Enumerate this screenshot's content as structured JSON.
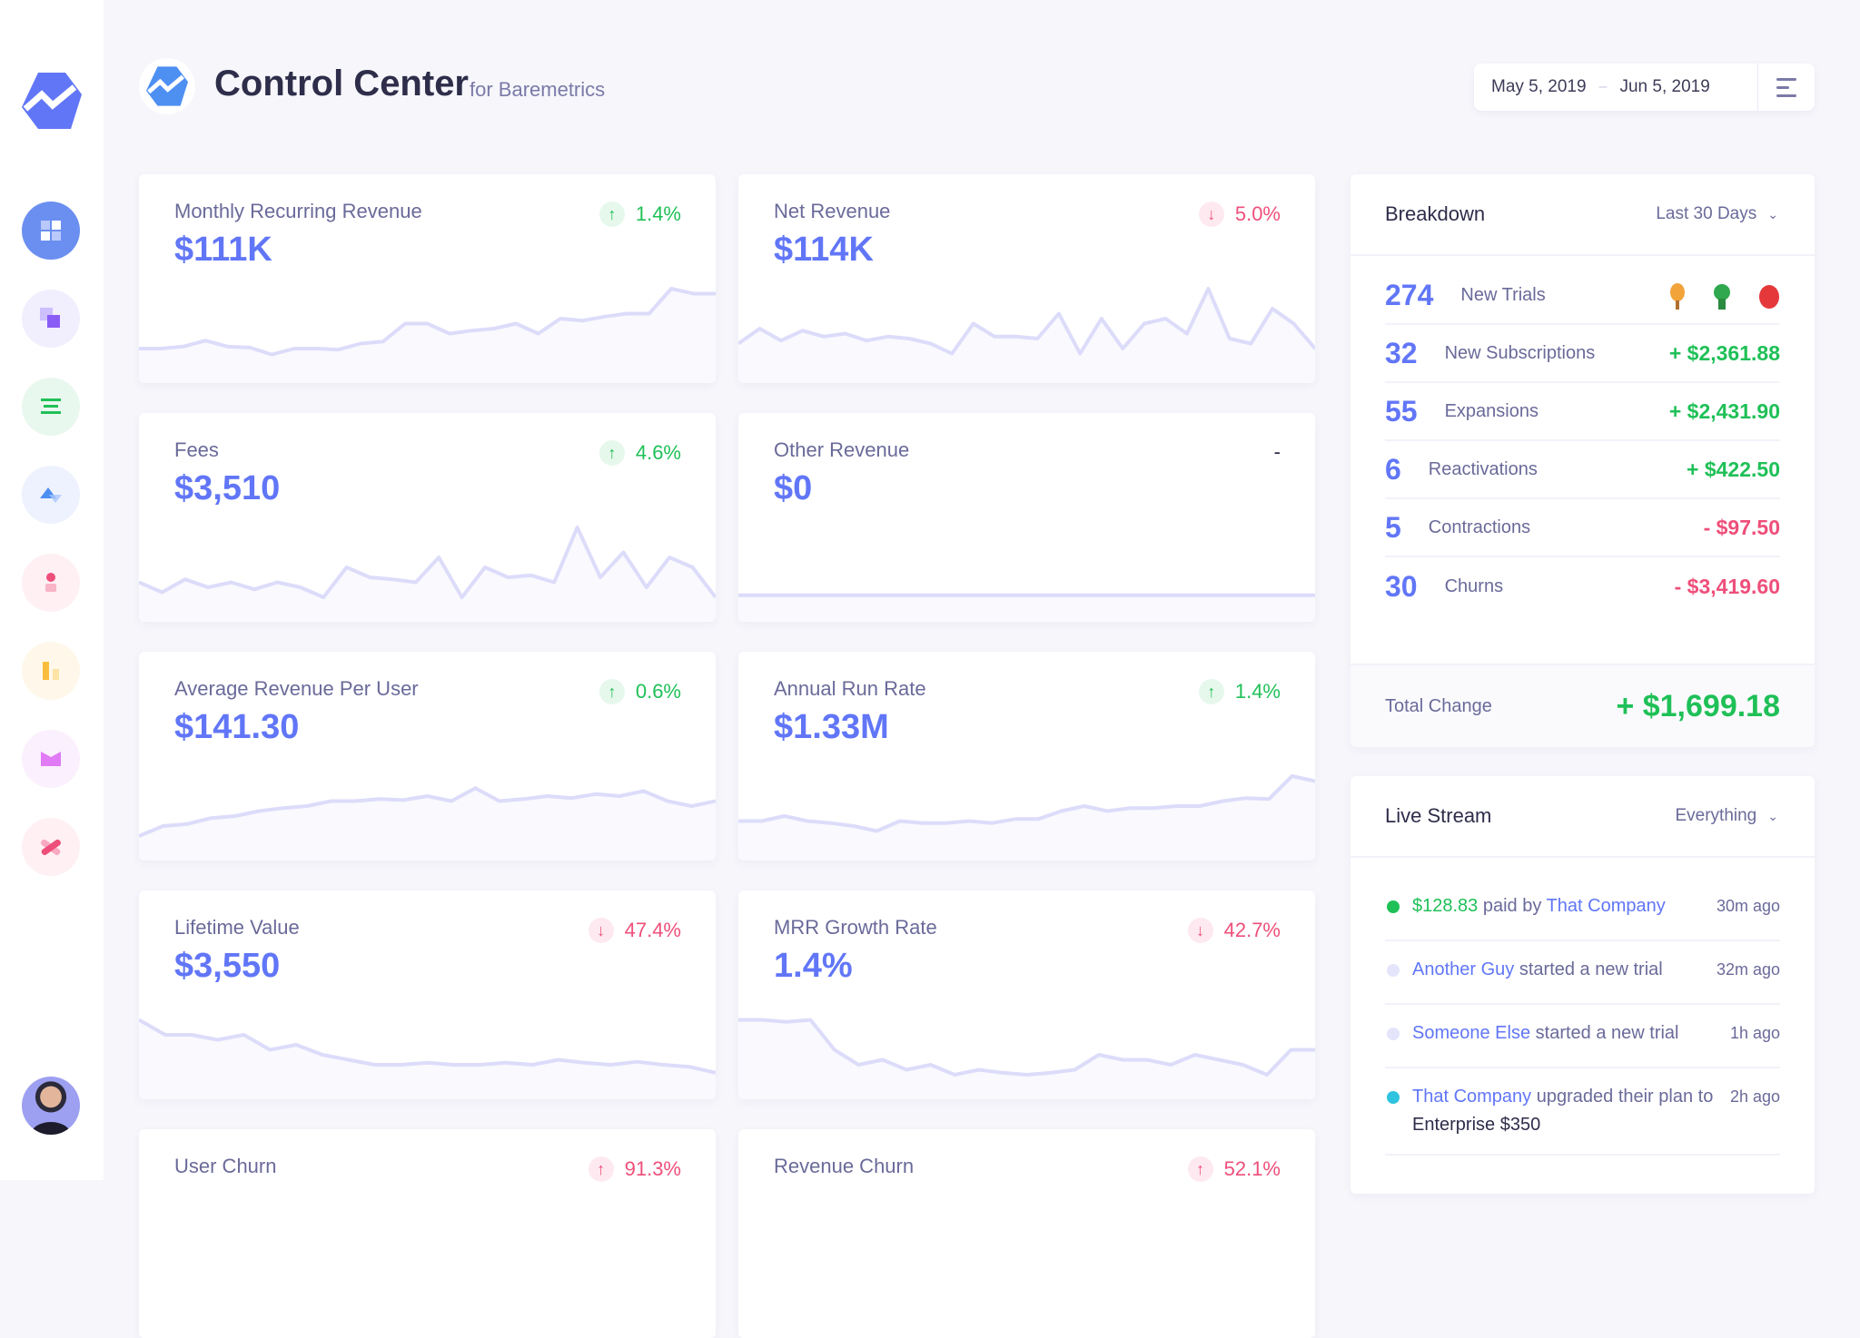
{
  "header": {
    "title": "Control Center",
    "subtitle": "for Baremetrics",
    "date_start": "May 5, 2019",
    "date_sep": "–",
    "date_end": "Jun 5, 2019"
  },
  "colors": {
    "accent": "#6176f7",
    "positive": "#1fc057",
    "negative": "#ee4f7a",
    "sparkline": "#dcdcfa"
  },
  "sidebar": {
    "items": [
      {
        "icon": "dashboard-grid-icon",
        "active": true
      },
      {
        "icon": "layers-icon"
      },
      {
        "icon": "list-icon"
      },
      {
        "icon": "segments-icon"
      },
      {
        "icon": "customer-icon"
      },
      {
        "icon": "bar-chart-icon"
      },
      {
        "icon": "mail-icon"
      },
      {
        "icon": "cancel-icon"
      }
    ]
  },
  "cards": [
    {
      "title": "Monthly Recurring Revenue",
      "value": "$111K",
      "change": "1.4%",
      "direction": "up",
      "spark": [
        0.3,
        0.3,
        0.32,
        0.38,
        0.32,
        0.31,
        0.24,
        0.3,
        0.3,
        0.29,
        0.35,
        0.37,
        0.55,
        0.55,
        0.45,
        0.48,
        0.5,
        0.55,
        0.45,
        0.6,
        0.58,
        0.62,
        0.65,
        0.65,
        0.9,
        0.85,
        0.85
      ]
    },
    {
      "title": "Net Revenue",
      "value": "$114K",
      "change": "5.0%",
      "direction": "down",
      "spark": [
        0.35,
        0.5,
        0.38,
        0.48,
        0.42,
        0.45,
        0.38,
        0.42,
        0.4,
        0.35,
        0.25,
        0.55,
        0.42,
        0.42,
        0.4,
        0.65,
        0.25,
        0.6,
        0.3,
        0.55,
        0.6,
        0.45,
        0.9,
        0.4,
        0.35,
        0.7,
        0.55,
        0.3
      ]
    },
    {
      "title": "Fees",
      "value": "$3,510",
      "change": "4.6%",
      "direction": "up",
      "spark": [
        0.35,
        0.25,
        0.38,
        0.3,
        0.35,
        0.28,
        0.35,
        0.3,
        0.2,
        0.5,
        0.4,
        0.38,
        0.35,
        0.6,
        0.2,
        0.5,
        0.4,
        0.42,
        0.35,
        0.9,
        0.4,
        0.65,
        0.3,
        0.6,
        0.5,
        0.2
      ]
    },
    {
      "title": "Other Revenue",
      "value": "$0",
      "change": "-",
      "direction": "none",
      "spark": [
        0.22,
        0.22,
        0.22,
        0.22,
        0.22,
        0.22,
        0.22,
        0.22,
        0.22,
        0.22
      ]
    },
    {
      "title": "Average Revenue Per User",
      "value": "$141.30",
      "change": "0.6%",
      "direction": "up",
      "spark": [
        0.2,
        0.3,
        0.32,
        0.38,
        0.4,
        0.45,
        0.48,
        0.5,
        0.55,
        0.55,
        0.57,
        0.56,
        0.6,
        0.55,
        0.68,
        0.55,
        0.57,
        0.6,
        0.58,
        0.62,
        0.6,
        0.65,
        0.55,
        0.5,
        0.55
      ]
    },
    {
      "title": "Annual Run Rate",
      "value": "$1.33M",
      "change": "1.4%",
      "direction": "up",
      "spark": [
        0.35,
        0.35,
        0.4,
        0.35,
        0.33,
        0.3,
        0.25,
        0.35,
        0.33,
        0.33,
        0.35,
        0.33,
        0.37,
        0.37,
        0.45,
        0.5,
        0.45,
        0.48,
        0.48,
        0.5,
        0.5,
        0.55,
        0.58,
        0.57,
        0.8,
        0.75
      ]
    },
    {
      "title": "Lifetime Value",
      "value": "$3,550",
      "change": "47.4%",
      "direction": "down",
      "spark": [
        0.75,
        0.6,
        0.6,
        0.55,
        0.6,
        0.45,
        0.5,
        0.4,
        0.35,
        0.3,
        0.3,
        0.32,
        0.3,
        0.3,
        0.32,
        0.3,
        0.35,
        0.32,
        0.3,
        0.33,
        0.3,
        0.28,
        0.22
      ]
    },
    {
      "title": "MRR Growth Rate",
      "value": "1.4%",
      "change": "42.7%",
      "direction": "down",
      "spark": [
        0.75,
        0.75,
        0.73,
        0.75,
        0.45,
        0.3,
        0.35,
        0.25,
        0.3,
        0.2,
        0.25,
        0.22,
        0.2,
        0.22,
        0.25,
        0.4,
        0.35,
        0.35,
        0.3,
        0.4,
        0.35,
        0.3,
        0.2,
        0.45,
        0.45
      ]
    },
    {
      "title": "User Churn",
      "value": "",
      "change": "91.3%",
      "direction": "up-bad",
      "spark": []
    },
    {
      "title": "Revenue Churn",
      "value": "",
      "change": "52.1%",
      "direction": "up-bad",
      "spark": []
    }
  ],
  "breakdown": {
    "title": "Breakdown",
    "range": "Last 30 Days",
    "rows": [
      {
        "count": "274",
        "label": "New Trials",
        "amount": ""
      },
      {
        "count": "32",
        "label": "New Subscriptions",
        "amount": "+ $2,361.88",
        "sign": "pos"
      },
      {
        "count": "55",
        "label": "Expansions",
        "amount": "+ $2,431.90",
        "sign": "pos"
      },
      {
        "count": "6",
        "label": "Reactivations",
        "amount": "+ $422.50",
        "sign": "pos"
      },
      {
        "count": "5",
        "label": "Contractions",
        "amount": "- $97.50",
        "sign": "neg"
      },
      {
        "count": "30",
        "label": "Churns",
        "amount": "- $3,419.60",
        "sign": "neg"
      }
    ],
    "total_label": "Total Change",
    "total_value": "+ $1,699.18"
  },
  "live_stream": {
    "title": "Live Stream",
    "filter": "Everything",
    "events": [
      {
        "dot": "#1fc057",
        "amount": "$128.83",
        "text": "paid by",
        "link": "That Company",
        "time": "30m ago"
      },
      {
        "dot": "#e4e4fb",
        "link": "Another Guy",
        "text": "started a new trial",
        "time": "32m ago"
      },
      {
        "dot": "#e4e4fb",
        "link": "Someone Else",
        "text": "started a new trial",
        "time": "1h ago"
      },
      {
        "dot": "#2ec4e0",
        "link": "That Company",
        "text": "upgraded their plan to",
        "plan": "Enterprise $350",
        "time": "2h ago"
      }
    ]
  }
}
